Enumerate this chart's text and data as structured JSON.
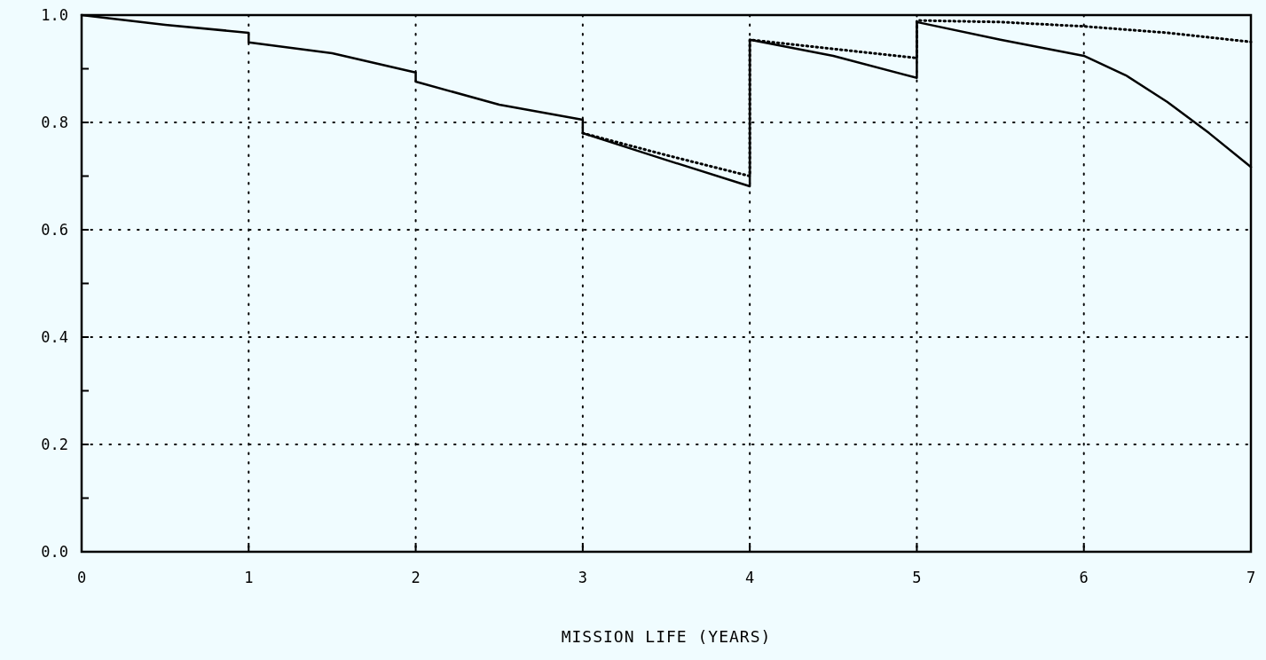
{
  "chart_data": {
    "type": "line",
    "xlabel": "MISSION LIFE (YEARS)",
    "xlim": [
      0,
      7
    ],
    "ylim": [
      0,
      1
    ],
    "xticks": [
      0,
      1,
      2,
      3,
      4,
      5,
      6,
      7
    ],
    "yticks": [
      {
        "value": 0,
        "label": "0.0"
      },
      {
        "value": 0.1,
        "label": null
      },
      {
        "value": 0.2,
        "label": "0.2"
      },
      {
        "value": 0.3,
        "label": null
      },
      {
        "value": 0.4,
        "label": "0.4"
      },
      {
        "value": 0.5,
        "label": null
      },
      {
        "value": 0.6,
        "label": "0.6"
      },
      {
        "value": 0.7,
        "label": null
      },
      {
        "value": 0.8,
        "label": "0.8"
      },
      {
        "value": 0.9,
        "label": null
      },
      {
        "value": 1,
        "label": "1.0"
      }
    ],
    "grid": true,
    "series": [
      {
        "color": "#000000",
        "line_style": "solid",
        "x": [
          0,
          0.5,
          1,
          1,
          1.5,
          2,
          2,
          2.5,
          3,
          3,
          3.5,
          4,
          4,
          4.5,
          5,
          5,
          5.5,
          6,
          6.25,
          6.5,
          6.75,
          7
        ],
        "values": [
          1,
          0.982,
          0.967,
          0.949,
          0.929,
          0.893,
          0.876,
          0.833,
          0.805,
          0.78,
          0.73,
          0.681,
          0.954,
          0.924,
          0.883,
          0.987,
          0.954,
          0.924,
          0.888,
          0.838,
          0.78,
          0.717
        ]
      },
      {
        "color": "#000000",
        "line_style": "dotted",
        "x": [
          3,
          3.5,
          4,
          4,
          4.5,
          5,
          5,
          5.5,
          6,
          6.5,
          7
        ],
        "values": [
          0.78,
          0.739,
          0.7,
          0.954,
          0.937,
          0.92,
          0.99,
          0.987,
          0.979,
          0.967,
          0.95
        ]
      }
    ]
  }
}
